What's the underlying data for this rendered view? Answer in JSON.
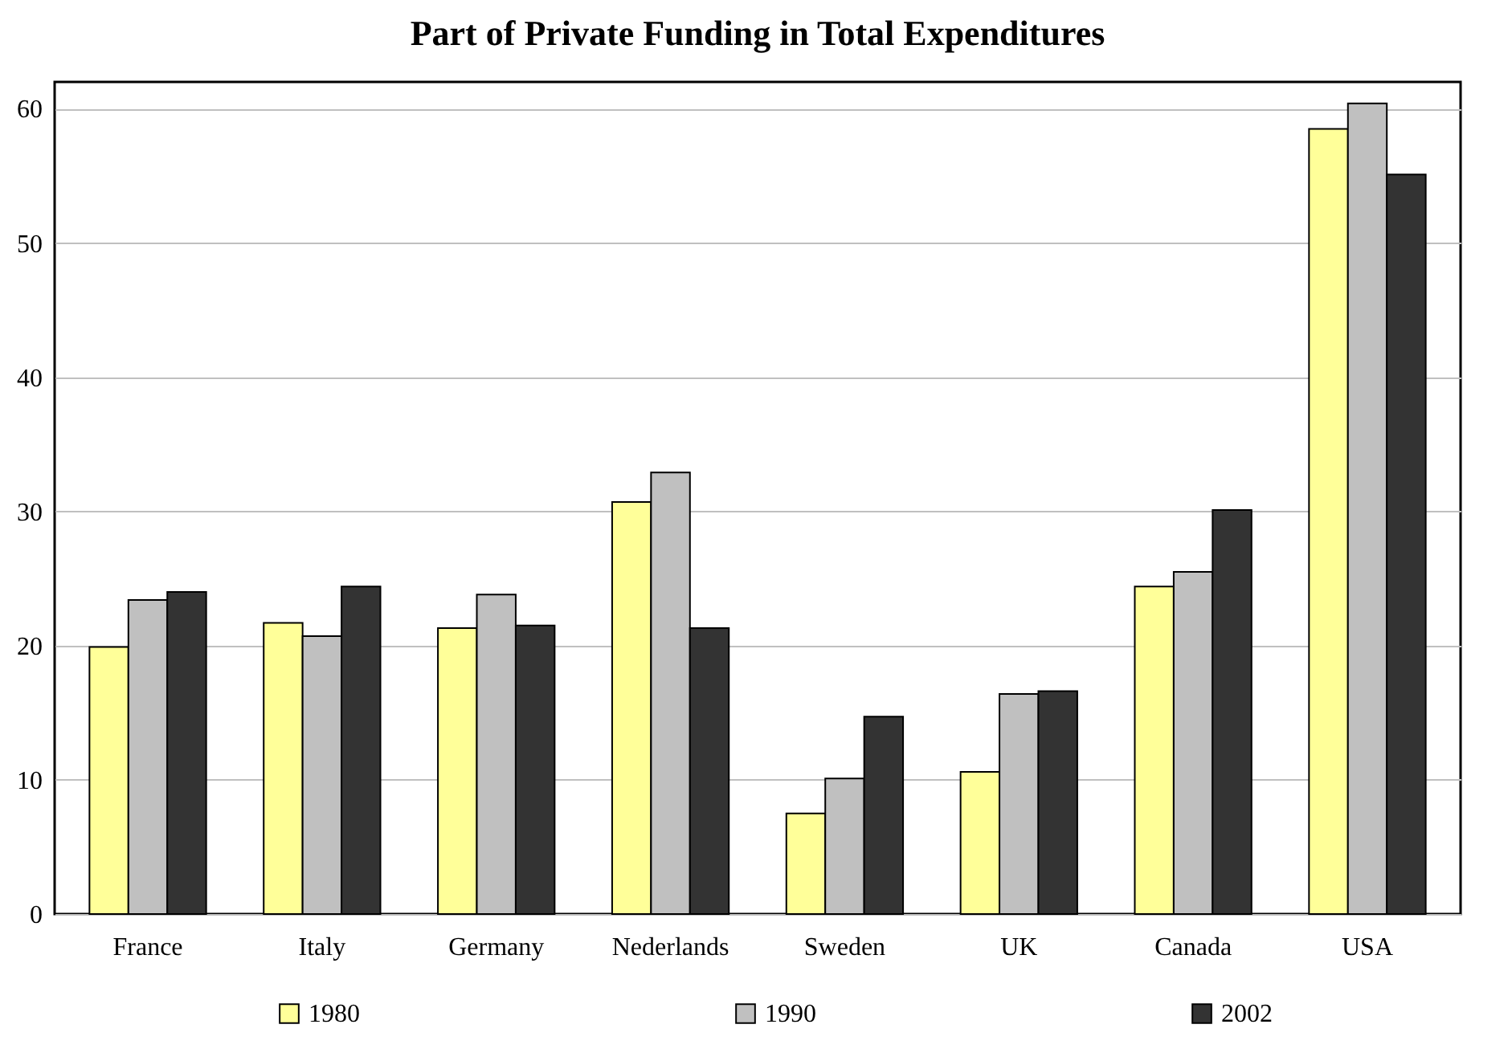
{
  "chart_data": {
    "type": "bar",
    "title": "Part of Private Funding in Total Expenditures",
    "categories": [
      "France",
      "Italy",
      "Germany",
      "Nederlands",
      "Sweden",
      "UK",
      "Canada",
      "USA"
    ],
    "series": [
      {
        "name": "1980",
        "color": "#ffff99",
        "values": [
          19.9,
          21.7,
          21.3,
          30.7,
          7.5,
          10.6,
          24.4,
          58.5
        ]
      },
      {
        "name": "1990",
        "color": "#c0c0c0",
        "values": [
          23.4,
          20.7,
          23.8,
          32.9,
          10.1,
          16.4,
          25.5,
          60.4
        ]
      },
      {
        "name": "2002",
        "color": "#333333",
        "values": [
          24.0,
          24.4,
          21.5,
          21.3,
          14.7,
          16.6,
          30.1,
          55.1
        ]
      }
    ],
    "ylim": [
      0,
      62
    ],
    "yticks": [
      0,
      10,
      20,
      30,
      40,
      50,
      60
    ],
    "grid": "y",
    "legend": "bottom"
  }
}
